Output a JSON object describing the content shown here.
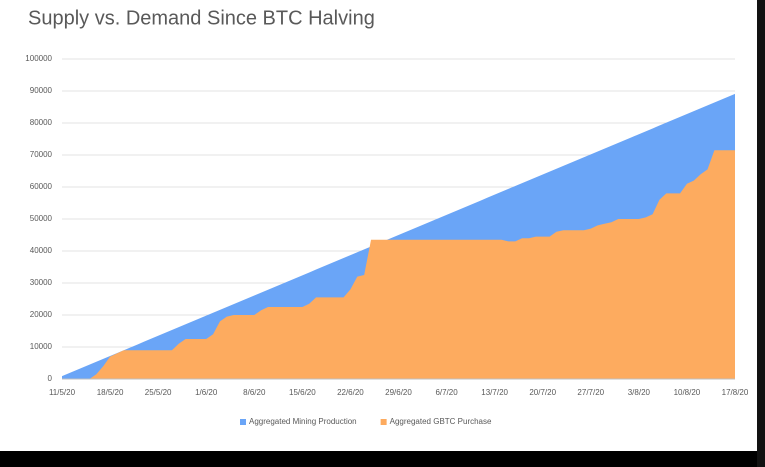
{
  "chart_data": {
    "type": "area",
    "title": "Supply vs. Demand Since BTC Halving",
    "categories": [
      "11/5/20",
      null,
      null,
      null,
      null,
      null,
      null,
      "18/5/20",
      null,
      null,
      null,
      null,
      null,
      null,
      "25/5/20",
      null,
      null,
      null,
      null,
      null,
      null,
      "1/6/20",
      null,
      null,
      null,
      null,
      null,
      null,
      "8/6/20",
      null,
      null,
      null,
      null,
      null,
      null,
      "15/6/20",
      null,
      null,
      null,
      null,
      null,
      null,
      "22/6/20",
      null,
      null,
      null,
      null,
      null,
      null,
      "29/6/20",
      null,
      null,
      null,
      null,
      null,
      null,
      "6/7/20",
      null,
      null,
      null,
      null,
      null,
      null,
      "13/7/20",
      null,
      null,
      null,
      null,
      null,
      null,
      "20/7/20",
      null,
      null,
      null,
      null,
      null,
      null,
      "27/7/20",
      null,
      null,
      null,
      null,
      null,
      null,
      "3/8/20",
      null,
      null,
      null,
      null,
      null,
      null,
      "10/8/20",
      null,
      null,
      null,
      null,
      null,
      null,
      "17/8/20"
    ],
    "series": [
      {
        "name": "Aggregated Mining Production",
        "color": "#6aa5f7",
        "values": [
          900,
          1800,
          2700,
          3600,
          4500,
          5400,
          6300,
          7200,
          8100,
          9000,
          9900,
          10800,
          11700,
          12600,
          13500,
          14400,
          15300,
          16200,
          17100,
          18000,
          18900,
          19800,
          20700,
          21600,
          22500,
          23400,
          24300,
          25200,
          26100,
          27000,
          27900,
          28800,
          29700,
          30600,
          31500,
          32400,
          33300,
          34200,
          35100,
          36000,
          36900,
          37800,
          38700,
          39600,
          40500,
          41400,
          42300,
          43200,
          44100,
          45000,
          45900,
          46800,
          47700,
          48600,
          49500,
          50400,
          51300,
          52200,
          53100,
          54000,
          54900,
          55800,
          56700,
          57600,
          58500,
          59400,
          60300,
          61200,
          62100,
          63000,
          63900,
          64800,
          65700,
          66600,
          67500,
          68400,
          69300,
          70200,
          71100,
          72000,
          72900,
          73800,
          74700,
          75600,
          76500,
          77400,
          78300,
          79200,
          80100,
          81000,
          81900,
          82800,
          83700,
          84600,
          85500,
          86400,
          87300,
          88200,
          89100
        ]
      },
      {
        "name": "Aggregated GBTC Purchase",
        "color": "#fdab5f",
        "values": [
          0,
          0,
          0,
          0,
          0,
          1500,
          4000,
          7000,
          8000,
          9000,
          9000,
          9000,
          9000,
          9000,
          9000,
          9000,
          9000,
          11000,
          12500,
          12500,
          12500,
          12500,
          14000,
          18000,
          19500,
          20000,
          20000,
          20000,
          20000,
          21500,
          22500,
          22500,
          22500,
          22500,
          22500,
          22500,
          23500,
          25500,
          25500,
          25500,
          25500,
          25500,
          28000,
          32000,
          32500,
          43500,
          43500,
          43500,
          43500,
          43500,
          43500,
          43500,
          43500,
          43500,
          43500,
          43500,
          43500,
          43500,
          43500,
          43500,
          43500,
          43500,
          43500,
          43500,
          43500,
          43000,
          43000,
          44000,
          44000,
          44500,
          44500,
          44500,
          46000,
          46500,
          46500,
          46500,
          46500,
          47000,
          48000,
          48500,
          49000,
          50000,
          50000,
          50000,
          50000,
          50500,
          51500,
          56000,
          58000,
          58000,
          58000,
          61000,
          62000,
          64000,
          65500,
          71500,
          71500,
          71500,
          71500
        ]
      }
    ],
    "ylim": [
      0,
      100000
    ],
    "yticks": [
      0,
      10000,
      20000,
      30000,
      40000,
      50000,
      60000,
      70000,
      80000,
      90000,
      100000
    ],
    "grid": true,
    "legend": "bottom"
  }
}
